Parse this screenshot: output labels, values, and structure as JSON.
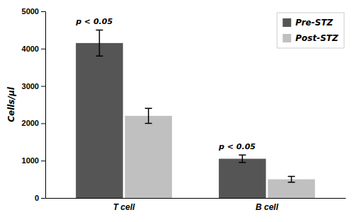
{
  "chart_data": {
    "type": "bar",
    "categories": [
      "T cell",
      "B cell"
    ],
    "series": [
      {
        "name": "Pre-STZ",
        "color": "#555555",
        "values": [
          4150,
          1050
        ],
        "errors": [
          350,
          100
        ]
      },
      {
        "name": "Post-STZ",
        "color": "#c0c0c0",
        "values": [
          2200,
          500
        ],
        "errors": [
          200,
          80
        ]
      }
    ],
    "ylabel": "Cells/μl",
    "ylim": [
      0,
      5000
    ],
    "yticks": [
      0,
      1000,
      2000,
      3000,
      4000,
      5000
    ],
    "annotations": [
      {
        "text": "p < 0.05",
        "category": "T cell"
      },
      {
        "text": "p < 0.05",
        "category": "B cell"
      }
    ],
    "legend": "upper right",
    "grid": false
  }
}
